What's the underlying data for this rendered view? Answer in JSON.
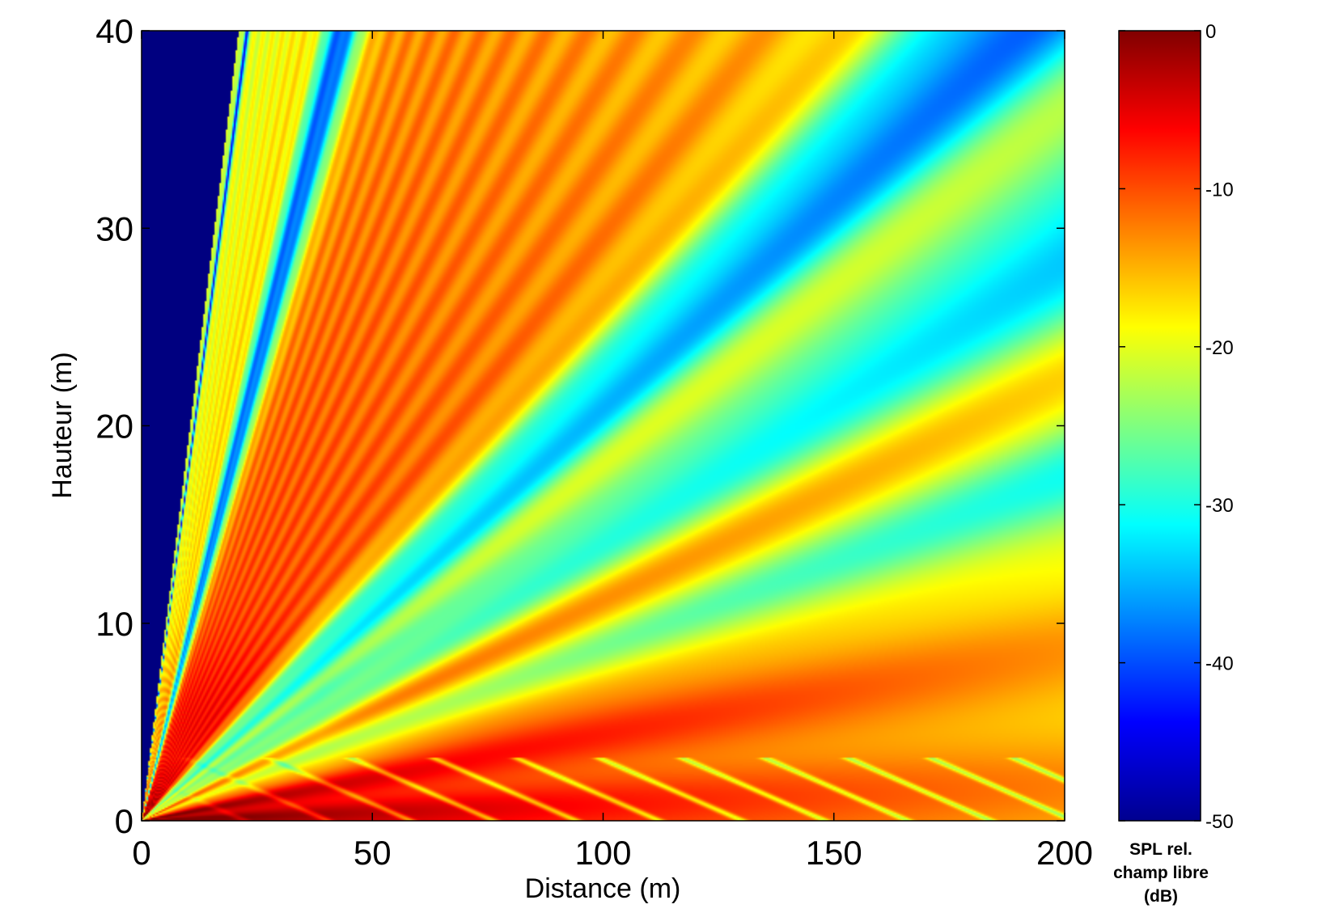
{
  "chart_data": {
    "type": "heatmap",
    "title": "",
    "xlabel": "Distance (m)",
    "ylabel": "Hauteur (m)",
    "xlim": [
      0,
      200
    ],
    "ylim": [
      0,
      40
    ],
    "x_ticks": [
      0,
      50,
      100,
      150,
      200
    ],
    "y_ticks": [
      0,
      10,
      20,
      30,
      40
    ],
    "colorbar": {
      "label_lines": [
        "SPL rel.",
        "champ libre",
        "(dB)"
      ],
      "range": [
        -50,
        0
      ],
      "ticks": [
        0,
        -10,
        -20,
        -30,
        -40,
        -50
      ],
      "colormap": "jet"
    },
    "field_description": {
      "source_height_m": 0,
      "dark_sector_boundary_slope": 1.9,
      "interference_null_slopes": [
        1.75,
        0.92,
        0.215,
        0.145,
        0.085
      ],
      "base_level_near_ground_dB": -12,
      "base_level_high_angle_dB": -22,
      "ground_interference_band_height_m": 3.2
    },
    "colors": {
      "jet_dark_blue": "#00008f",
      "jet_blue": "#0000ff",
      "jet_cyan": "#00ffff",
      "jet_yellow": "#ffff00",
      "jet_red": "#ff0000",
      "jet_dark_red": "#800000"
    }
  }
}
